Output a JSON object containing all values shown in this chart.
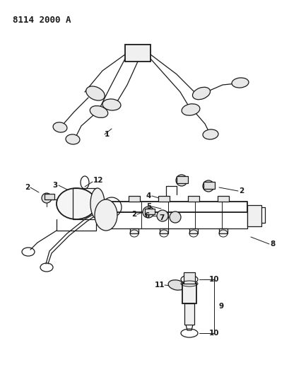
{
  "title": "8114 2000 A",
  "bg_color": "#ffffff",
  "line_color": "#1a1a1a",
  "title_fontsize": 9,
  "label_fontsize": 7.5,
  "fig_width": 4.1,
  "fig_height": 5.33,
  "dpi": 100
}
